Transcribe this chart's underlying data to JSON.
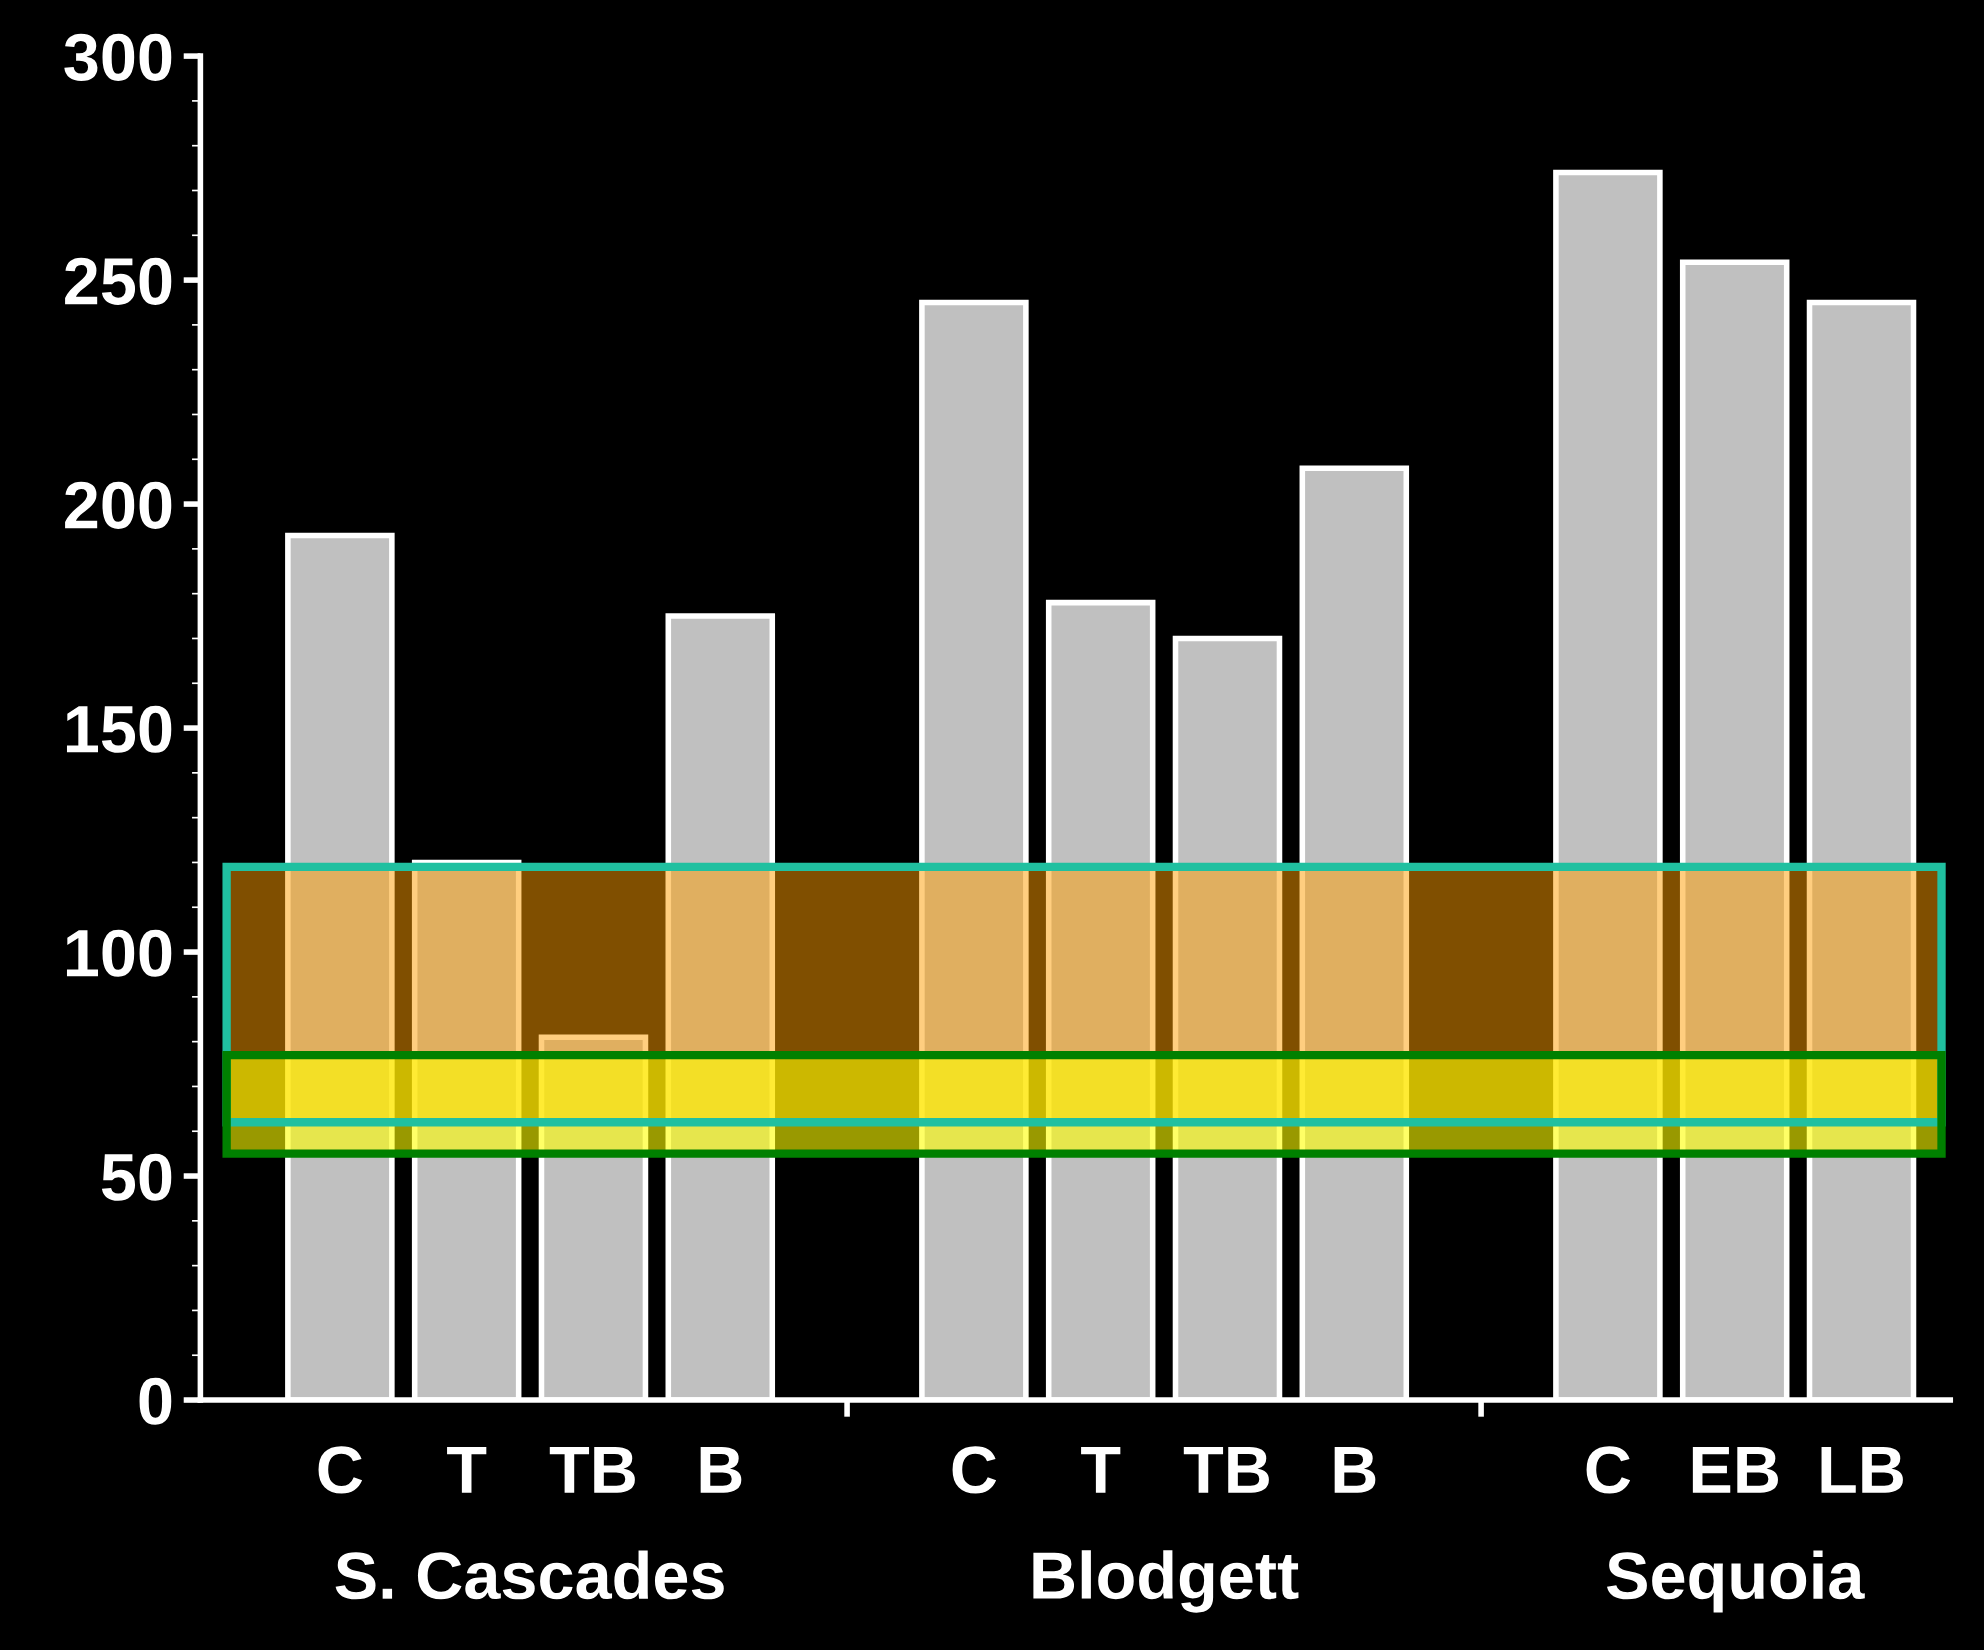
{
  "chart_data": {
    "type": "bar",
    "categories": [
      "C",
      "T",
      "TB",
      "B",
      null,
      "C",
      "T",
      "TB",
      "B",
      null,
      "C",
      "EB",
      "LB"
    ],
    "values": [
      193,
      120,
      81,
      175,
      null,
      245,
      178,
      170,
      208,
      null,
      274,
      254,
      245
    ],
    "color": "#c0c0c0",
    "ylim": [
      0,
      300
    ],
    "yticks": [
      0,
      50,
      100,
      150,
      200,
      250,
      300
    ],
    "bands": [
      {
        "axis": "y",
        "from": 62,
        "to": 119,
        "color": "#ff9e00"
      },
      {
        "axis": "y",
        "from": 55,
        "to": 77,
        "color": "#ffff00"
      }
    ],
    "annotations": [
      "S. Cascades",
      "Blodgett",
      "Sequoia"
    ],
    "grid": false,
    "legend": false
  }
}
